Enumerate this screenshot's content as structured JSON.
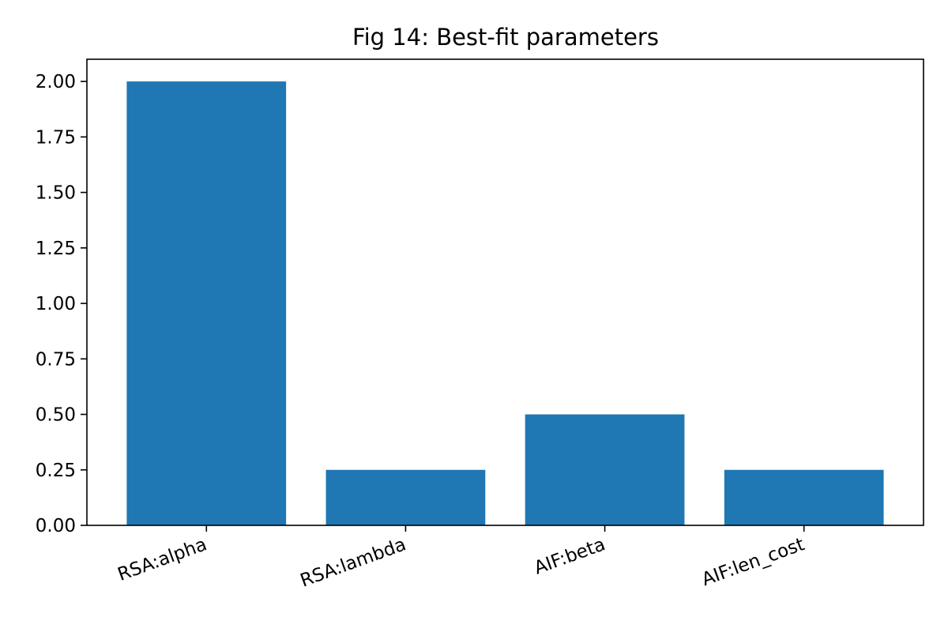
{
  "chart_data": {
    "type": "bar",
    "title": "Fig 14: Best-fit parameters",
    "xlabel": "",
    "ylabel": "",
    "categories": [
      "RSA:alpha",
      "RSA:lambda",
      "AIF:beta",
      "AIF:len_cost"
    ],
    "values": [
      2.0,
      0.25,
      0.5,
      0.25
    ],
    "ylim": [
      0,
      2.1
    ],
    "yticks": [
      "0.00",
      "0.25",
      "0.50",
      "0.75",
      "1.00",
      "1.25",
      "1.50",
      "1.75",
      "2.00"
    ],
    "bar_color": "#1f77b4",
    "grid": false,
    "legend": false
  }
}
